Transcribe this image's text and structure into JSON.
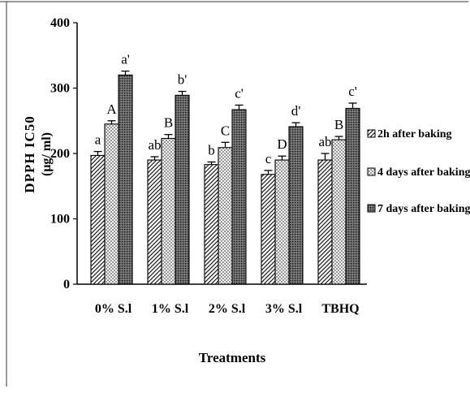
{
  "chart_data": {
    "type": "bar",
    "categories": [
      "0% S.l",
      "1% S.l",
      "2% S.l",
      "3% S.l",
      "TBHQ"
    ],
    "series": [
      {
        "name": "2h after baking",
        "values": [
          197,
          190,
          183,
          168,
          190
        ],
        "errors": [
          6,
          5,
          4,
          6,
          10
        ],
        "letters": [
          "a",
          "ab",
          "b",
          "c",
          "ab"
        ],
        "pattern": "diag"
      },
      {
        "name": "4 days after baking",
        "values": [
          245,
          223,
          209,
          190,
          221
        ],
        "errors": [
          5,
          6,
          8,
          6,
          5
        ],
        "letters": [
          "A",
          "B",
          "C",
          "D",
          "B"
        ],
        "pattern": "checker"
      },
      {
        "name": "7 days after baking",
        "values": [
          320,
          289,
          267,
          241,
          269
        ],
        "errors": [
          6,
          6,
          7,
          6,
          8
        ],
        "letters": [
          "a'",
          "b'",
          "c'",
          "d'",
          "c'"
        ],
        "pattern": "dots"
      }
    ],
    "title": "",
    "xlabel": "Treatments",
    "ylabel": "DPPH IC50",
    "ylabel_unit": "(μg/ ml)",
    "ylim": [
      0,
      400
    ],
    "yticks": [
      "0",
      "100",
      "200",
      "300",
      "400"
    ],
    "grid": false,
    "legend": "right"
  }
}
